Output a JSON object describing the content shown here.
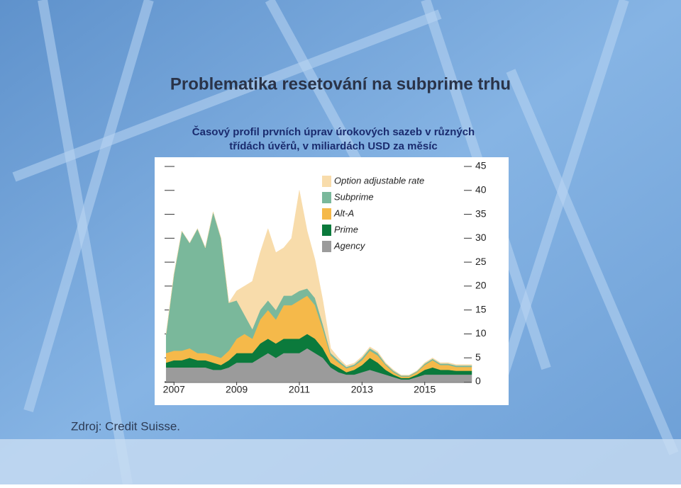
{
  "slide": {
    "title": "Problematika resetování na subprime trhu",
    "subtitle": [
      "Časový profil prvních úprav úrokových sazeb v různých",
      "třídách úvěrů, v miliardách USD za měsíc"
    ],
    "source": "Zdroj: Credit Suisse."
  },
  "chart_data": {
    "type": "stacked_area",
    "x": [
      2006.75,
      2007,
      2007.25,
      2007.5,
      2007.75,
      2008,
      2008.25,
      2008.5,
      2008.75,
      2009,
      2009.25,
      2009.5,
      2009.75,
      2010,
      2010.25,
      2010.5,
      2010.75,
      2011,
      2011.25,
      2011.5,
      2011.75,
      2012,
      2012.25,
      2012.5,
      2012.75,
      2013,
      2013.25,
      2013.5,
      2013.75,
      2014,
      2014.25,
      2014.5,
      2014.75,
      2015,
      2015.25,
      2015.5,
      2015.75,
      2016,
      2016.25,
      2016.5
    ],
    "xlim": [
      2006.7,
      2016.5
    ],
    "xticks": [
      2007,
      2009,
      2011,
      2013,
      2015
    ],
    "ylim": [
      0,
      45
    ],
    "yticks": [
      0,
      5,
      10,
      15,
      20,
      25,
      30,
      35,
      40,
      45
    ],
    "series": [
      {
        "name": "Agency",
        "color": "#9b9b9b",
        "values": [
          3,
          3,
          3,
          3,
          3,
          3,
          2.5,
          2.5,
          3,
          4,
          4,
          4,
          5,
          6,
          5,
          6,
          6,
          6,
          7,
          6,
          5,
          3,
          2,
          1.5,
          1.5,
          2,
          2.5,
          2,
          1.5,
          1,
          0.5,
          0.5,
          1,
          1.5,
          1.5,
          1.5,
          1.5,
          1.5,
          1.5,
          1.5
        ]
      },
      {
        "name": "Prime",
        "color": "#0b7a3c",
        "values": [
          1,
          1.5,
          1.5,
          2,
          1.5,
          1.5,
          1.5,
          1,
          1.5,
          2,
          2,
          2,
          3,
          3,
          3,
          3,
          3,
          3,
          3,
          3,
          2,
          1,
          1,
          0.5,
          1,
          1.5,
          2.5,
          2,
          1,
          0.5,
          0.3,
          0.3,
          0.5,
          1,
          1.5,
          1,
          1,
          0.8,
          0.8,
          0.8
        ]
      },
      {
        "name": "Alt-A",
        "color": "#f5b94a",
        "values": [
          2,
          2,
          2,
          2,
          1.5,
          1.5,
          1.5,
          1.5,
          2,
          3,
          4,
          3,
          5,
          6,
          5,
          7,
          7,
          8,
          8,
          7,
          4,
          1.5,
          1,
          0.8,
          0.8,
          1,
          1.5,
          1.5,
          1,
          0.5,
          0.3,
          0.3,
          0.5,
          1,
          1.5,
          1,
          1,
          0.8,
          0.8,
          0.8
        ]
      },
      {
        "name": "Subprime",
        "color": "#7ab89b",
        "values": [
          4,
          16,
          25,
          22,
          26,
          22,
          30,
          25,
          10,
          8,
          4,
          2,
          2,
          2,
          2,
          2,
          2,
          2,
          1.5,
          1.5,
          1,
          0.5,
          0.5,
          0.3,
          0.3,
          0.5,
          0.5,
          0.5,
          0.3,
          0.3,
          0.2,
          0.2,
          0.2,
          0.3,
          0.3,
          0.3,
          0.3,
          0.3,
          0.3,
          0.3
        ]
      },
      {
        "name": "Option adjustable rate",
        "color": "#f8dcab",
        "values": [
          0,
          0,
          0,
          0,
          0,
          0,
          0,
          0,
          0,
          2,
          6,
          10,
          12,
          15,
          12,
          10,
          12,
          21,
          12,
          8,
          5,
          1,
          0.5,
          0.3,
          0.3,
          0.3,
          0.3,
          0.3,
          0.2,
          0.2,
          0.1,
          0.1,
          0.1,
          0.2,
          0.2,
          0.2,
          0.2,
          0.2,
          0.2,
          0.2
        ]
      }
    ]
  }
}
